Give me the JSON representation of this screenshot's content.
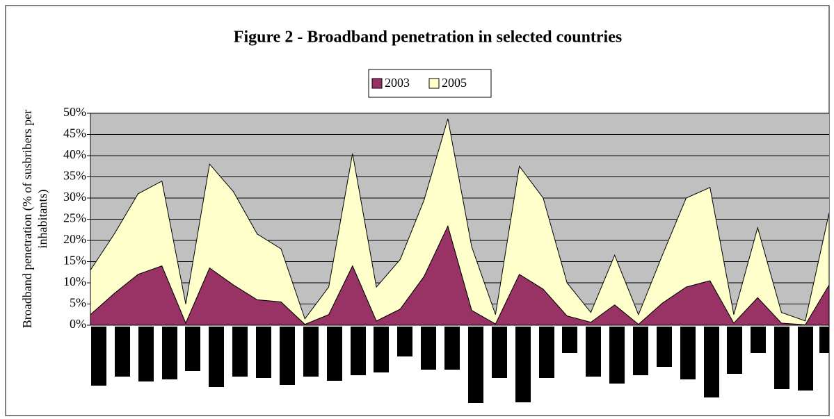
{
  "chart_data": {
    "type": "stacked-area",
    "title": "Figure 2 - Broadband penetration in selected countries",
    "y_label": "Broadband penetration (% of susbribers per inhabitants)",
    "categories": [
      null,
      null,
      null,
      null,
      null,
      null,
      null,
      null,
      null,
      null,
      null,
      null,
      null,
      null,
      null,
      null,
      null,
      null,
      null,
      null,
      null,
      null,
      null,
      null,
      null,
      null,
      null,
      null,
      null,
      null,
      null,
      null
    ],
    "series": [
      {
        "name": "2003",
        "color": "#993366",
        "values": [
          2.5,
          7.5,
          12,
          14,
          0.5,
          13.5,
          9.5,
          6,
          5.5,
          0.2,
          2.5,
          14,
          1,
          3.8,
          11.5,
          23.4,
          3.5,
          0.3,
          12,
          8.5,
          2.2,
          0.7,
          4.8,
          0.2,
          5.2,
          9,
          10.5,
          0.5,
          6.5,
          0.5,
          0.1,
          9.5
        ]
      },
      {
        "name": "2005",
        "color": "#ffffcc",
        "values": [
          10.5,
          14,
          19,
          20,
          4.5,
          24.5,
          22,
          15.5,
          12.5,
          1.3,
          6.5,
          26.5,
          8,
          11.7,
          18,
          25.3,
          15,
          2.2,
          25.5,
          21.5,
          7.8,
          2.3,
          11.7,
          2.3,
          11.3,
          21,
          22,
          2,
          16.5,
          2.5,
          0.9,
          17
        ]
      }
    ],
    "ylim": [
      0,
      50
    ],
    "yticks": [
      {
        "value": 0,
        "label": "0%"
      },
      {
        "value": 5,
        "label": "5%"
      },
      {
        "value": 10,
        "label": "10%"
      },
      {
        "value": 15,
        "label": "15%"
      },
      {
        "value": 20,
        "label": "20%"
      },
      {
        "value": 25,
        "label": "25%"
      },
      {
        "value": 30,
        "label": "30%"
      },
      {
        "value": 35,
        "label": "35%"
      },
      {
        "value": 40,
        "label": "40%"
      },
      {
        "value": 45,
        "label": "45%"
      },
      {
        "value": 50,
        "label": "50%"
      }
    ],
    "grid": true,
    "plot_background": "#c0c0c0",
    "legend": "top"
  }
}
